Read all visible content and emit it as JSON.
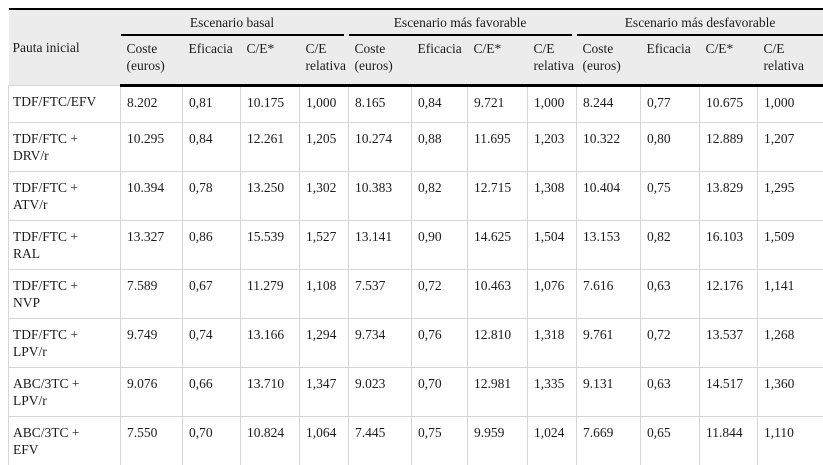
{
  "colors": {
    "header_bg": "#ececec",
    "rule_color": "#000000",
    "grid_color": "#d6d6d6"
  },
  "table": {
    "corner_label": "Pauta inicial",
    "groups": [
      {
        "label": "Escenario basal"
      },
      {
        "label": "Escenario más favorable"
      },
      {
        "label": "Escenario más desfavorable"
      }
    ],
    "sub_headers": [
      "Coste\n(euros)",
      "Eficacia",
      "C/E*",
      "C/E\nrelativa"
    ],
    "rows": [
      {
        "label": "TDF/FTC/EFV",
        "values": [
          "8.202",
          "0,81",
          "10.175",
          "1,000",
          "8.165",
          "0,84",
          "9.721",
          "1,000",
          "8.244",
          "0,77",
          "10.675",
          "1,000"
        ]
      },
      {
        "label": "TDF/FTC +\nDRV/r",
        "values": [
          "10.295",
          "0,84",
          "12.261",
          "1,205",
          "10.274",
          "0,88",
          "11.695",
          "1,203",
          "10.322",
          "0,80",
          "12.889",
          "1,207"
        ]
      },
      {
        "label": "TDF/FTC +\nATV/r",
        "values": [
          "10.394",
          "0,78",
          "13.250",
          "1,302",
          "10.383",
          "0,82",
          "12.715",
          "1,308",
          "10.404",
          "0,75",
          "13.829",
          "1,295"
        ]
      },
      {
        "label": "TDF/FTC +\nRAL",
        "values": [
          "13.327",
          "0,86",
          "15.539",
          "1,527",
          "13.141",
          "0,90",
          "14.625",
          "1,504",
          "13.153",
          "0,82",
          "16.103",
          "1,509"
        ]
      },
      {
        "label": "TDF/FTC +\nNVP",
        "values": [
          "7.589",
          "0,67",
          "11.279",
          "1,108",
          "7.537",
          "0,72",
          "10.463",
          "1,076",
          "7.616",
          "0,63",
          "12.176",
          "1,141"
        ]
      },
      {
        "label": "TDF/FTC +\nLPV/r",
        "values": [
          "9.749",
          "0,74",
          "13.166",
          "1,294",
          "9.734",
          "0,76",
          "12.810",
          "1,318",
          "9.761",
          "0,72",
          "13.537",
          "1,268"
        ]
      },
      {
        "label": "ABC/3TC +\nLPV/r",
        "values": [
          "9.076",
          "0,66",
          "13.710",
          "1,347",
          "9.023",
          "0,70",
          "12.981",
          "1,335",
          "9.131",
          "0,63",
          "14.517",
          "1,360"
        ]
      },
      {
        "label": "ABC/3TC +\nEFV",
        "values": [
          "7.550",
          "0,70",
          "10.824",
          "1,064",
          "7.445",
          "0,75",
          "9.959",
          "1,024",
          "7.669",
          "0,65",
          "11.844",
          "1,110"
        ]
      }
    ]
  }
}
